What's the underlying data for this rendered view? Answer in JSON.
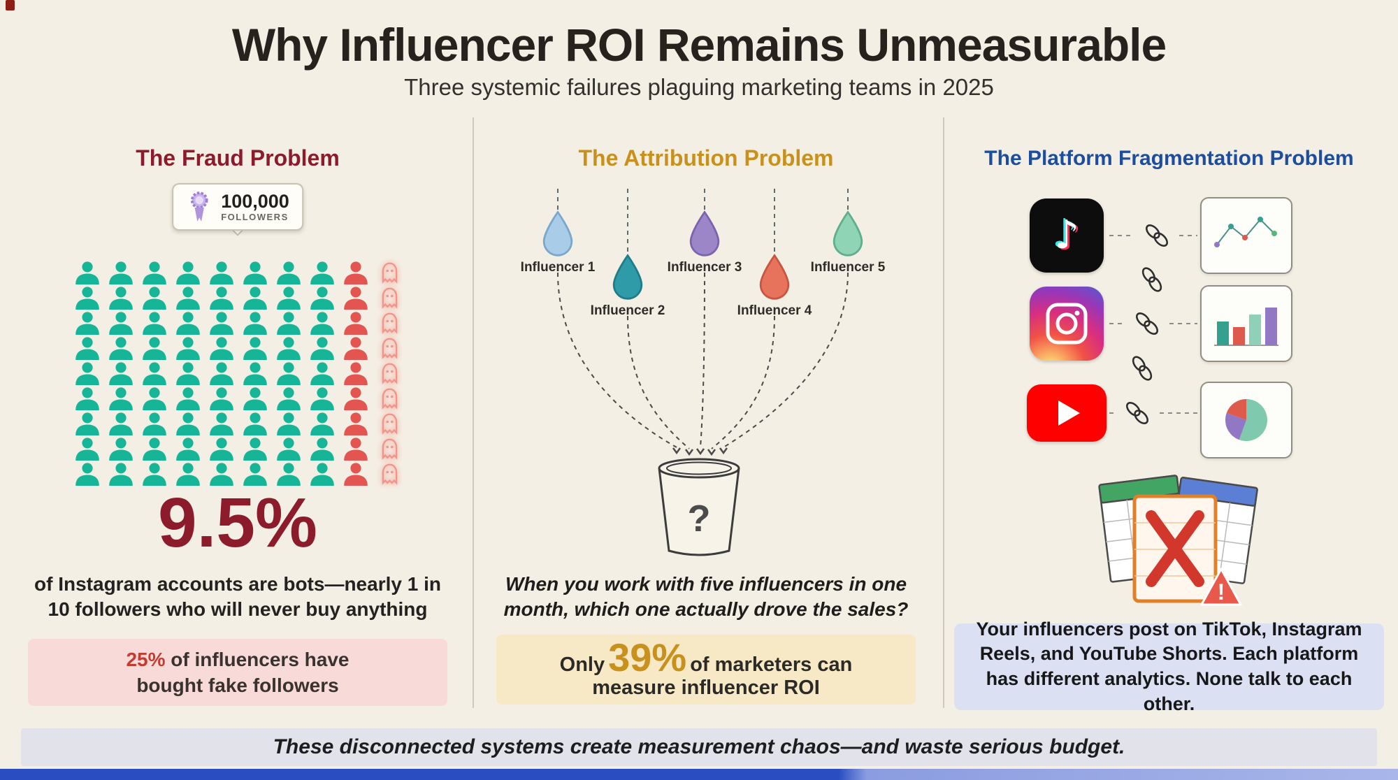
{
  "header": {
    "title": "Why Influencer ROI Remains Unmeasurable",
    "subtitle": "Three systemic failures plaguing marketing teams in 2025"
  },
  "colors": {
    "fraud_red": "#8c1b2c",
    "attribution_amber": "#c8911d",
    "fragmentation_blue": "#1c4d9f",
    "callout_red": "#c23c30"
  },
  "fraud": {
    "heading": "The Fraud Problem",
    "badge": {
      "value": "100,000",
      "label": "FOLLOWERS"
    },
    "grid": {
      "rows": 9,
      "cols": 10,
      "real_cols": 8,
      "ghost_cols": 1,
      "real_color": "#17b598",
      "bot_color": "#e25550",
      "ghost_color": "#f2948a"
    },
    "stat": "9.5%",
    "description": "of Instagram accounts are bots—nearly 1 in 10 followers who will never buy anything",
    "callout": {
      "highlight": "25%",
      "line1_rest": " of influencers have",
      "line2": "bought fake followers"
    }
  },
  "attribution": {
    "heading": "The Attribution Problem",
    "influencers": [
      {
        "label": "Influencer 1",
        "color": "#a9cce8",
        "stroke": "#7ba7cb"
      },
      {
        "label": "Influencer 2",
        "color": "#2f9aa8",
        "stroke": "#1f7d89"
      },
      {
        "label": "Influencer 3",
        "color": "#9d86c8",
        "stroke": "#7c63ad"
      },
      {
        "label": "Influencer 4",
        "color": "#e8735c",
        "stroke": "#c75640"
      },
      {
        "label": "Influencer 5",
        "color": "#8fd4b4",
        "stroke": "#5fae8d"
      }
    ],
    "bucket_symbol": "?",
    "question": "When you work with five influencers in one month, which one actually drove the sales?",
    "callout": {
      "prefix": "Only ",
      "highlight": "39%",
      "line1_rest": " of marketers can",
      "line2": "measure influencer ROI"
    }
  },
  "fragmentation": {
    "heading": "The Platform Fragmentation Problem",
    "platform_icons": [
      "tiktok-icon",
      "instagram-icon",
      "youtube-icon"
    ],
    "chart_icons": [
      "line-chart-icon",
      "bar-chart-icon",
      "pie-chart-icon"
    ],
    "warning_symbol": "!",
    "callout": "Your influencers post on TikTok, Instagram Reels, and YouTube Shorts. Each platform has different analytics. None talk to each other."
  },
  "footer": {
    "text": "These disconnected systems create measurement chaos—and waste serious budget."
  }
}
